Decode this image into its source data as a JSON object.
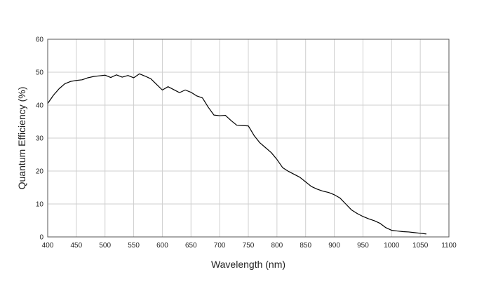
{
  "chart_data": {
    "type": "line",
    "title": "",
    "xlabel": "Wavelength (nm)",
    "ylabel": "Quantum Efficiency (%)",
    "xlim": [
      400,
      1100
    ],
    "ylim": [
      0,
      60
    ],
    "x_ticks": [
      "400",
      "450",
      "500",
      "550",
      "600",
      "650",
      "700",
      "750",
      "800",
      "850",
      "900",
      "950",
      "1000",
      "1050",
      "1100"
    ],
    "y_ticks": [
      "0",
      "10",
      "20",
      "30",
      "40",
      "50",
      "60"
    ],
    "grid": true,
    "legend": "none",
    "colors": {
      "line": "#000000",
      "grid": "#cfcfcf",
      "frame": "#555555",
      "text": "#222222"
    },
    "series": [
      {
        "x": [
          400,
          410,
          420,
          430,
          440,
          450,
          460,
          465,
          470,
          480,
          490,
          500,
          510,
          520,
          530,
          540,
          550,
          560,
          570,
          580,
          590,
          600,
          610,
          620,
          630,
          640,
          650,
          660,
          670,
          680,
          690,
          700,
          710,
          720,
          730,
          740,
          750,
          760,
          770,
          780,
          790,
          800,
          810,
          820,
          830,
          840,
          850,
          860,
          870,
          880,
          890,
          900,
          910,
          920,
          930,
          940,
          950,
          960,
          970,
          980,
          990,
          1000,
          1010,
          1020,
          1030,
          1040,
          1050,
          1060
        ],
        "y": [
          40.5,
          43,
          45,
          46.5,
          47.2,
          47.5,
          47.7,
          48,
          48.3,
          48.7,
          48.9,
          49.1,
          48.4,
          49.2,
          48.5,
          49,
          48.3,
          49.5,
          48.8,
          48,
          46.3,
          44.6,
          45.6,
          44.7,
          43.8,
          44.6,
          43.9,
          42.8,
          42.2,
          39.4,
          37,
          36.8,
          36.9,
          35.3,
          33.9,
          33.8,
          33.7,
          30.8,
          28.6,
          27.1,
          25.6,
          23.5,
          21,
          19.9,
          19,
          18.1,
          16.7,
          15.3,
          14.5,
          13.9,
          13.5,
          12.8,
          11.8,
          10,
          8.2,
          7.1,
          6.2,
          5.5,
          4.9,
          4.1,
          2.8,
          2,
          1.8,
          1.6,
          1.5,
          1.3,
          1.1,
          0.9
        ]
      }
    ]
  }
}
